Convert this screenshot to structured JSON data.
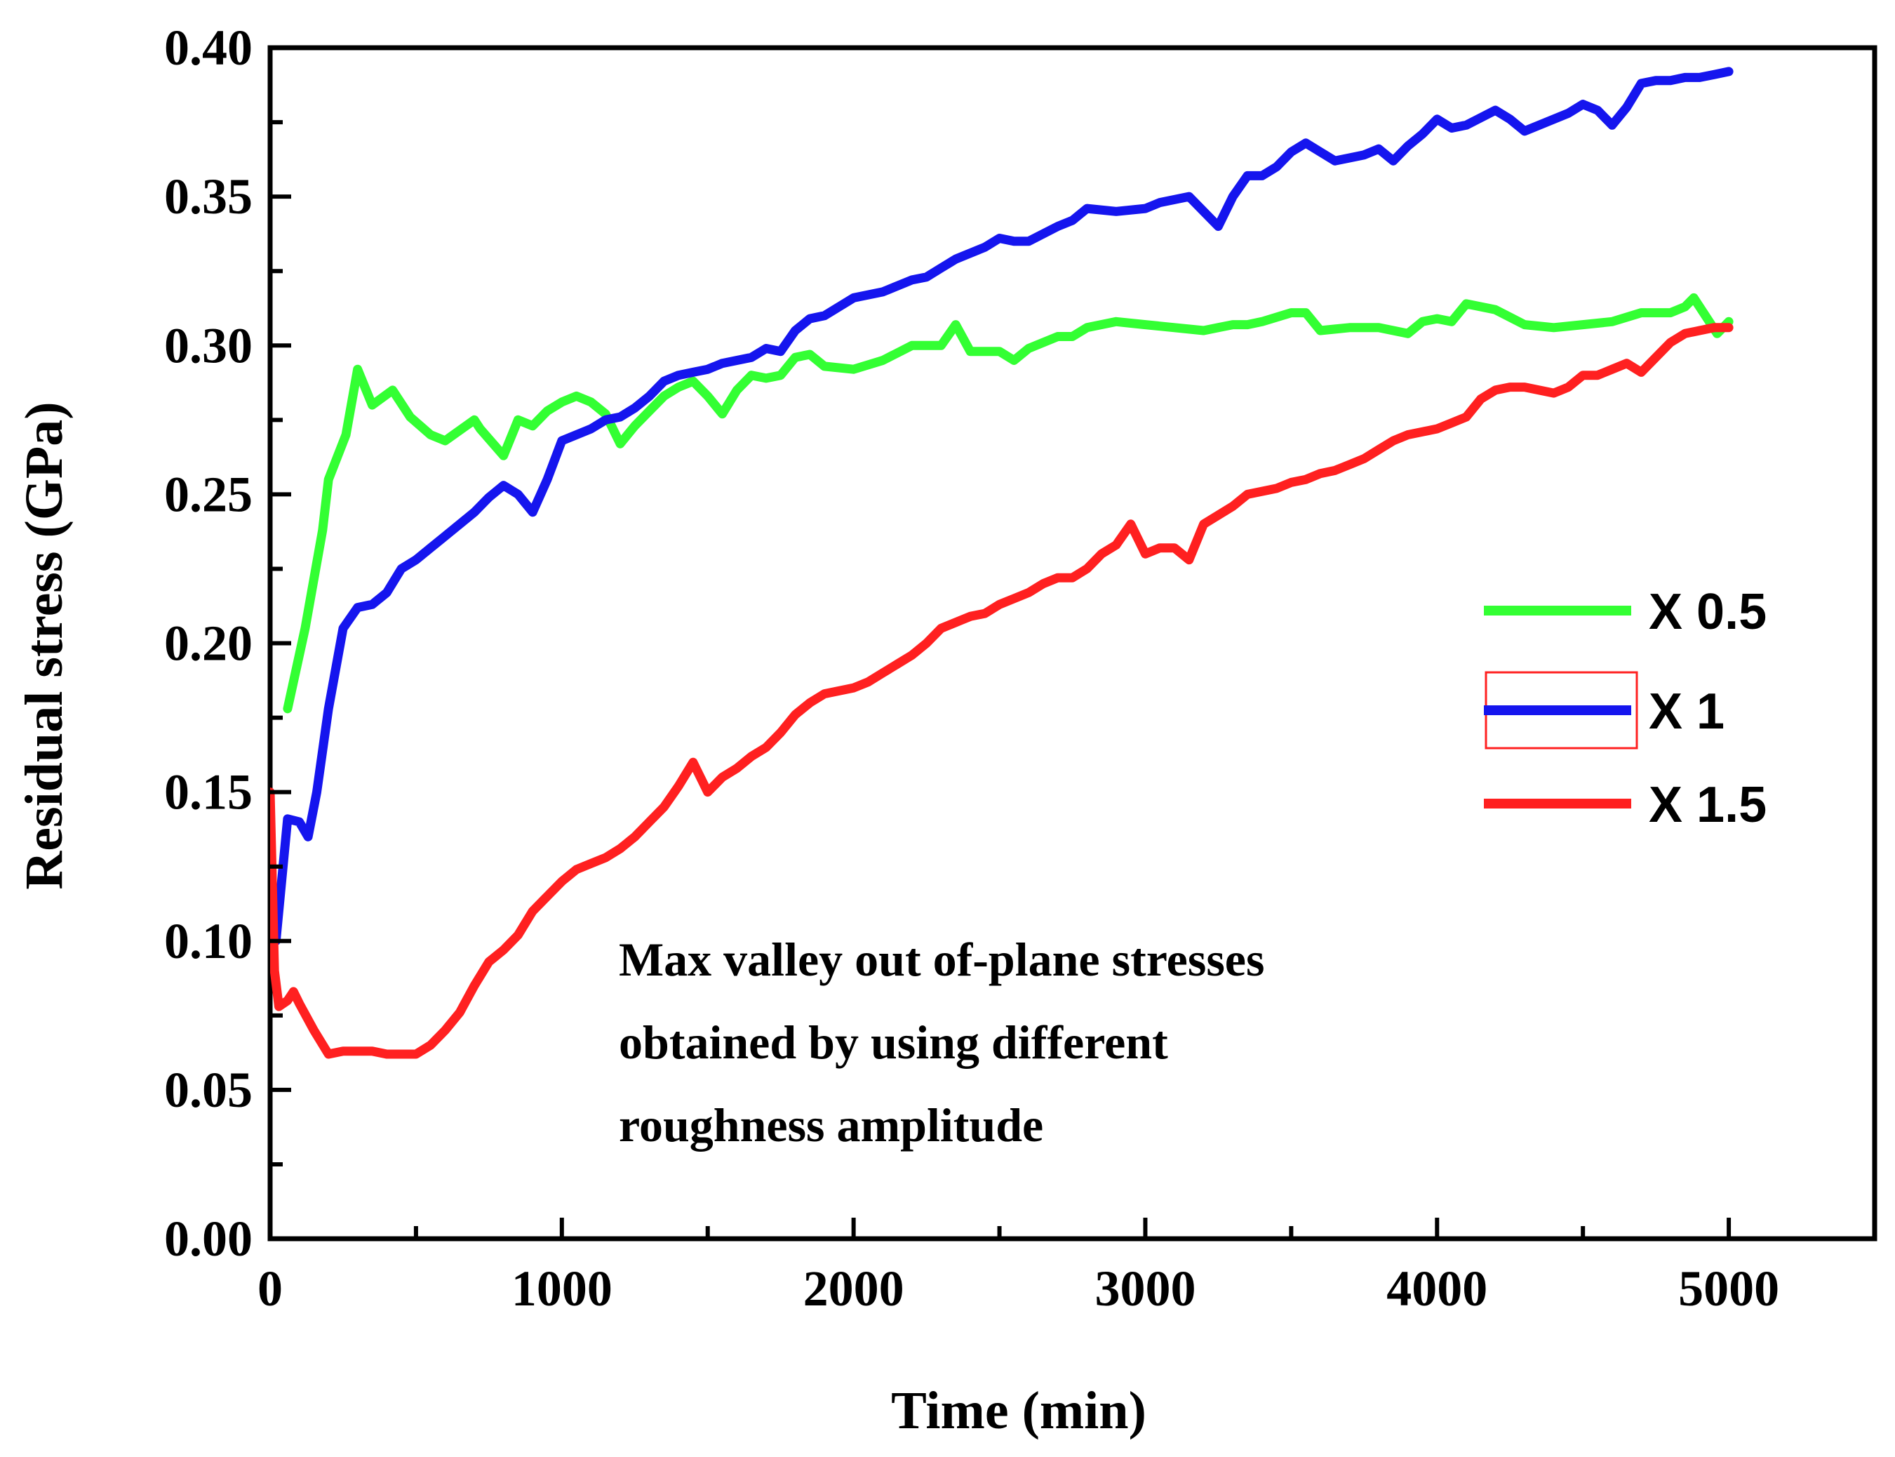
{
  "chart_data": {
    "type": "line",
    "title": "",
    "xlabel": "Time (min)",
    "ylabel": "Residual stress (GPa)",
    "xlim": [
      0,
      5500
    ],
    "ylim": [
      0,
      0.4
    ],
    "x_ticks": [
      0,
      1000,
      2000,
      3000,
      4000,
      5000
    ],
    "x_tick_labels": [
      "0",
      "1000",
      "2000",
      "3000",
      "4000",
      "5000"
    ],
    "y_ticks": [
      0.0,
      0.05,
      0.1,
      0.15,
      0.2,
      0.25,
      0.3,
      0.35,
      0.4
    ],
    "y_tick_labels": [
      "0.00",
      "0.05",
      "0.10",
      "0.15",
      "0.20",
      "0.25",
      "0.30",
      "0.35",
      "0.40"
    ],
    "grid": false,
    "legend_position": "right",
    "annotation_lines": [
      "Max valley out of-plane stresses",
      "obtained by using different",
      "roughness amplitude"
    ],
    "series": [
      {
        "name": "X 0.5",
        "color": "#33ff33",
        "x": [
          60,
          120,
          180,
          200,
          260,
          300,
          350,
          420,
          480,
          550,
          600,
          700,
          720,
          800,
          850,
          900,
          950,
          1000,
          1050,
          1100,
          1150,
          1200,
          1250,
          1300,
          1350,
          1400,
          1450,
          1500,
          1550,
          1600,
          1650,
          1700,
          1750,
          1800,
          1850,
          1900,
          2000,
          2100,
          2200,
          2300,
          2350,
          2400,
          2500,
          2550,
          2600,
          2700,
          2750,
          2800,
          2900,
          3000,
          3100,
          3200,
          3250,
          3300,
          3350,
          3400,
          3500,
          3550,
          3600,
          3700,
          3800,
          3850,
          3900,
          3950,
          4000,
          4050,
          4100,
          4200,
          4300,
          4400,
          4500,
          4600,
          4700,
          4800,
          4850,
          4880,
          4920,
          4960,
          5000
        ],
        "y": [
          0.178,
          0.205,
          0.238,
          0.255,
          0.27,
          0.292,
          0.28,
          0.285,
          0.276,
          0.27,
          0.268,
          0.275,
          0.272,
          0.263,
          0.275,
          0.273,
          0.278,
          0.281,
          0.283,
          0.281,
          0.277,
          0.267,
          0.273,
          0.278,
          0.283,
          0.286,
          0.288,
          0.283,
          0.277,
          0.285,
          0.29,
          0.289,
          0.29,
          0.296,
          0.297,
          0.293,
          0.292,
          0.295,
          0.3,
          0.3,
          0.307,
          0.298,
          0.298,
          0.295,
          0.299,
          0.303,
          0.303,
          0.306,
          0.308,
          0.307,
          0.306,
          0.305,
          0.306,
          0.307,
          0.307,
          0.308,
          0.311,
          0.311,
          0.305,
          0.306,
          0.306,
          0.305,
          0.304,
          0.308,
          0.309,
          0.308,
          0.314,
          0.312,
          0.307,
          0.306,
          0.307,
          0.308,
          0.311,
          0.311,
          0.313,
          0.316,
          0.31,
          0.304,
          0.308
        ]
      },
      {
        "name": "X 1",
        "color": "#1515ee",
        "x": [
          20,
          60,
          100,
          130,
          160,
          200,
          250,
          300,
          350,
          400,
          450,
          500,
          550,
          600,
          650,
          700,
          750,
          800,
          850,
          900,
          950,
          1000,
          1050,
          1100,
          1150,
          1200,
          1250,
          1300,
          1350,
          1400,
          1450,
          1500,
          1550,
          1600,
          1650,
          1700,
          1750,
          1800,
          1850,
          1900,
          2000,
          2100,
          2200,
          2250,
          2300,
          2350,
          2400,
          2450,
          2500,
          2550,
          2600,
          2700,
          2750,
          2800,
          2900,
          3000,
          3050,
          3100,
          3150,
          3200,
          3250,
          3300,
          3350,
          3400,
          3450,
          3500,
          3550,
          3600,
          3650,
          3700,
          3750,
          3800,
          3850,
          3900,
          3950,
          4000,
          4050,
          4100,
          4200,
          4250,
          4300,
          4350,
          4400,
          4450,
          4500,
          4550,
          4600,
          4650,
          4700,
          4750,
          4800,
          4850,
          4900,
          4950,
          5000
        ],
        "y": [
          0.1,
          0.141,
          0.14,
          0.135,
          0.15,
          0.178,
          0.205,
          0.212,
          0.213,
          0.217,
          0.225,
          0.228,
          0.232,
          0.236,
          0.24,
          0.244,
          0.249,
          0.253,
          0.25,
          0.244,
          0.255,
          0.268,
          0.27,
          0.272,
          0.275,
          0.276,
          0.279,
          0.283,
          0.288,
          0.29,
          0.291,
          0.292,
          0.294,
          0.295,
          0.296,
          0.299,
          0.298,
          0.305,
          0.309,
          0.31,
          0.316,
          0.318,
          0.322,
          0.323,
          0.326,
          0.329,
          0.331,
          0.333,
          0.336,
          0.335,
          0.335,
          0.34,
          0.342,
          0.346,
          0.345,
          0.346,
          0.348,
          0.349,
          0.35,
          0.345,
          0.34,
          0.35,
          0.357,
          0.357,
          0.36,
          0.365,
          0.368,
          0.365,
          0.362,
          0.363,
          0.364,
          0.366,
          0.362,
          0.367,
          0.371,
          0.376,
          0.373,
          0.374,
          0.379,
          0.376,
          0.372,
          0.374,
          0.376,
          0.378,
          0.381,
          0.379,
          0.374,
          0.38,
          0.388,
          0.389,
          0.389,
          0.39,
          0.39,
          0.391,
          0.392
        ]
      },
      {
        "name": "X 1.5",
        "color": "#ff2020",
        "x": [
          0,
          15,
          30,
          60,
          80,
          100,
          150,
          200,
          250,
          300,
          350,
          400,
          450,
          500,
          550,
          600,
          650,
          700,
          750,
          800,
          850,
          900,
          950,
          1000,
          1050,
          1100,
          1150,
          1200,
          1250,
          1300,
          1350,
          1400,
          1450,
          1500,
          1550,
          1600,
          1650,
          1700,
          1750,
          1800,
          1850,
          1900,
          1950,
          2000,
          2050,
          2100,
          2150,
          2200,
          2250,
          2300,
          2350,
          2400,
          2450,
          2500,
          2550,
          2600,
          2650,
          2700,
          2750,
          2800,
          2850,
          2900,
          2950,
          3000,
          3050,
          3100,
          3150,
          3200,
          3250,
          3300,
          3350,
          3400,
          3450,
          3500,
          3550,
          3600,
          3650,
          3700,
          3750,
          3800,
          3850,
          3900,
          3950,
          4000,
          4050,
          4100,
          4150,
          4200,
          4250,
          4300,
          4350,
          4400,
          4450,
          4500,
          4550,
          4600,
          4650,
          4700,
          4750,
          4800,
          4850,
          4900,
          4950,
          5000
        ],
        "y": [
          0.15,
          0.09,
          0.078,
          0.08,
          0.083,
          0.079,
          0.07,
          0.062,
          0.063,
          0.063,
          0.063,
          0.062,
          0.062,
          0.062,
          0.065,
          0.07,
          0.076,
          0.085,
          0.093,
          0.097,
          0.102,
          0.11,
          0.115,
          0.12,
          0.124,
          0.126,
          0.128,
          0.131,
          0.135,
          0.14,
          0.145,
          0.152,
          0.16,
          0.15,
          0.155,
          0.158,
          0.162,
          0.165,
          0.17,
          0.176,
          0.18,
          0.183,
          0.184,
          0.185,
          0.187,
          0.19,
          0.193,
          0.196,
          0.2,
          0.205,
          0.207,
          0.209,
          0.21,
          0.213,
          0.215,
          0.217,
          0.22,
          0.222,
          0.222,
          0.225,
          0.23,
          0.233,
          0.24,
          0.23,
          0.232,
          0.232,
          0.228,
          0.24,
          0.243,
          0.246,
          0.25,
          0.251,
          0.252,
          0.254,
          0.255,
          0.257,
          0.258,
          0.26,
          0.262,
          0.265,
          0.268,
          0.27,
          0.271,
          0.272,
          0.274,
          0.276,
          0.282,
          0.285,
          0.286,
          0.286,
          0.285,
          0.284,
          0.286,
          0.29,
          0.29,
          0.292,
          0.294,
          0.291,
          0.296,
          0.301,
          0.304,
          0.305,
          0.306,
          0.306
        ]
      }
    ]
  }
}
